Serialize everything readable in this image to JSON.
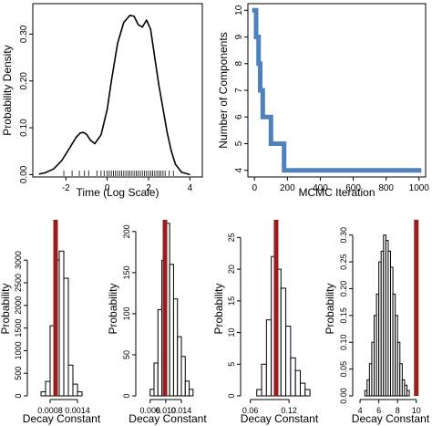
{
  "chart_data": [
    {
      "type": "line",
      "xlabel": "Time (Log Scale)",
      "ylabel": "Probability Density",
      "xlim": [
        -3.6,
        4.6
      ],
      "ylim": [
        -0.005,
        0.365
      ],
      "xticks": [
        -2,
        0,
        2,
        4
      ],
      "yticks": [
        0.0,
        0.1,
        0.2,
        0.3
      ],
      "ytick_labels": [
        "0.00",
        "0.10",
        "0.20",
        "0.30"
      ],
      "series": [
        {
          "x": [
            -3.3,
            -3.0,
            -2.6,
            -2.2,
            -1.8,
            -1.5,
            -1.3,
            -1.15,
            -1.0,
            -0.8,
            -0.6,
            -0.3,
            0.0,
            0.2,
            0.5,
            0.8,
            1.1,
            1.3,
            1.5,
            1.7,
            1.9,
            2.1,
            2.3,
            2.5,
            2.7,
            2.9,
            3.1,
            3.3,
            3.6,
            4.0
          ],
          "y": [
            0.001,
            0.004,
            0.012,
            0.03,
            0.058,
            0.08,
            0.089,
            0.09,
            0.086,
            0.073,
            0.066,
            0.085,
            0.14,
            0.2,
            0.28,
            0.325,
            0.34,
            0.338,
            0.32,
            0.315,
            0.33,
            0.31,
            0.25,
            0.19,
            0.14,
            0.09,
            0.05,
            0.022,
            0.005,
            0.0
          ]
        }
      ],
      "rug": [
        -2.1,
        -1.7,
        -1.35,
        -1.1,
        -0.9,
        -0.5,
        -0.3,
        -0.15,
        0.0,
        0.1,
        0.2,
        0.3,
        0.4,
        0.5,
        0.6,
        0.7,
        0.8,
        0.9,
        1.0,
        1.1,
        1.2,
        1.3,
        1.4,
        1.5,
        1.6,
        1.7,
        1.8,
        1.9,
        2.0,
        2.1,
        2.2,
        2.3,
        2.4,
        2.5,
        2.6,
        2.7,
        2.8,
        3.0,
        3.2
      ]
    },
    {
      "type": "line",
      "xlabel": "MCMC Iteration",
      "ylabel": "Number of Components",
      "xlim": [
        -40,
        1040
      ],
      "ylim": [
        3.75,
        10.25
      ],
      "xticks": [
        0,
        200,
        400,
        600,
        800,
        1000
      ],
      "yticks": [
        4,
        5,
        6,
        7,
        8,
        9,
        10
      ],
      "color": "#4f81bd",
      "series": [
        {
          "x": [
            0,
            10,
            10,
            25,
            25,
            35,
            35,
            50,
            50,
            100,
            100,
            180,
            180,
            1000
          ],
          "y": [
            10,
            10,
            9,
            9,
            8,
            8,
            7,
            7,
            6,
            6,
            5,
            5,
            4,
            4
          ]
        }
      ]
    },
    {
      "type": "bar",
      "xlabel": "Decay Constant",
      "ylabel": "Probability",
      "xlim": [
        0.0004,
        0.0017
      ],
      "ylim": [
        0,
        3850
      ],
      "xticks": [
        0.0008,
        0.0014
      ],
      "xtick_labels": [
        "0.0008",
        "0.0014"
      ],
      "yticks": [
        0,
        500,
        1000,
        1500,
        2000,
        2500,
        3000
      ],
      "bins_start": 0.0006,
      "bin_width": 0.0001,
      "values": [
        90,
        320,
        1550,
        3000,
        3200,
        2600,
        680,
        260,
        90
      ],
      "reference_line": 0.00092,
      "reference_color": "#9b1c1c"
    },
    {
      "type": "bar",
      "xlabel": "Decay Constant",
      "ylabel": "Probability",
      "xlim": [
        0.0035,
        0.0175
      ],
      "ylim": [
        0,
        212
      ],
      "xticks": [
        0.006,
        0.01,
        0.014
      ],
      "xtick_labels": [
        "0.006",
        "0.010",
        "0.014"
      ],
      "yticks": [
        0,
        50,
        100,
        150,
        200
      ],
      "bins_start": 0.006,
      "bin_width": 0.001,
      "values": [
        8,
        40,
        105,
        165,
        210,
        160,
        118,
        72,
        48,
        18,
        8
      ],
      "reference_line": 0.0098,
      "reference_color": "#9b1c1c"
    },
    {
      "type": "bar",
      "xlabel": "Decay Constant",
      "ylabel": "Probability",
      "xlim": [
        0.052,
        0.158
      ],
      "ylim": [
        0,
        27.5
      ],
      "xticks": [
        0.06,
        0.12
      ],
      "xtick_labels": [
        "0.06",
        "0.12"
      ],
      "yticks": [
        0,
        5,
        10,
        15,
        20,
        25
      ],
      "bins_start": 0.07,
      "bin_width": 0.0075,
      "values": [
        1,
        5,
        12,
        22,
        20,
        17,
        11,
        6,
        4,
        2,
        1
      ],
      "reference_line": 0.1,
      "reference_color": "#9b1c1c"
    },
    {
      "type": "bar",
      "xlabel": "Decay Constant",
      "ylabel": "Probability",
      "xlim": [
        3.7,
        10.8
      ],
      "ylim": [
        0,
        0.325
      ],
      "xticks": [
        4,
        6,
        8,
        10
      ],
      "xtick_labels": [
        "4",
        "6",
        "8",
        "10"
      ],
      "yticks": [
        0.0,
        0.05,
        0.1,
        0.15,
        0.2,
        0.25,
        0.3
      ],
      "ytick_labels": [
        "0.00",
        "0.05",
        "0.10",
        "0.15",
        "0.20",
        "0.25",
        "0.30"
      ],
      "bins_start": 4.5,
      "bin_width": 0.25,
      "values": [
        0.01,
        0.03,
        0.06,
        0.1,
        0.15,
        0.19,
        0.25,
        0.27,
        0.3,
        0.29,
        0.27,
        0.24,
        0.19,
        0.15,
        0.1,
        0.06,
        0.03,
        0.02,
        0.01
      ],
      "reference_line": 10.0,
      "reference_color": "#9b1c1c"
    }
  ]
}
